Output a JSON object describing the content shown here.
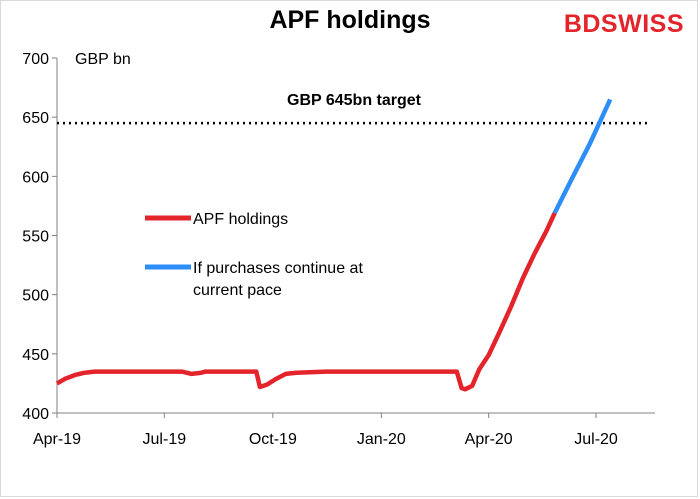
{
  "header": {
    "title": "APF holdings",
    "logo_part1": "BD",
    "logo_part2": "SWISS"
  },
  "chart_data": {
    "type": "line",
    "title": "APF holdings",
    "ylabel": "GBP bn",
    "ylim": [
      400,
      700
    ],
    "yticks": [
      400,
      450,
      500,
      550,
      600,
      650,
      700
    ],
    "xlim": [
      "2019-04-01",
      "2020-08-20"
    ],
    "xticks": [
      {
        "date": "2019-04-01",
        "label": "Apr-19"
      },
      {
        "date": "2019-07-01",
        "label": "Jul-19"
      },
      {
        "date": "2019-10-01",
        "label": "Oct-19"
      },
      {
        "date": "2020-01-01",
        "label": "Jan-20"
      },
      {
        "date": "2020-04-01",
        "label": "Apr-20"
      },
      {
        "date": "2020-07-01",
        "label": "Jul-20"
      }
    ],
    "target": {
      "value": 645,
      "label": "GBP 645bn target",
      "color": "#000000"
    },
    "series": [
      {
        "name": "APF holdings",
        "color": "#e3242b",
        "points": [
          [
            "2019-04-01",
            425
          ],
          [
            "2019-04-08",
            429
          ],
          [
            "2019-04-16",
            432
          ],
          [
            "2019-04-24",
            434
          ],
          [
            "2019-05-03",
            435
          ],
          [
            "2019-06-01",
            435
          ],
          [
            "2019-07-01",
            435
          ],
          [
            "2019-07-16",
            435
          ],
          [
            "2019-07-24",
            433
          ],
          [
            "2019-08-01",
            434
          ],
          [
            "2019-08-05",
            435
          ],
          [
            "2019-09-10",
            435
          ],
          [
            "2019-09-17",
            435
          ],
          [
            "2019-09-20",
            422
          ],
          [
            "2019-09-26",
            424
          ],
          [
            "2019-10-04",
            429
          ],
          [
            "2019-10-12",
            433
          ],
          [
            "2019-10-21",
            434
          ],
          [
            "2019-11-15",
            435
          ],
          [
            "2020-01-01",
            435
          ],
          [
            "2020-02-01",
            435
          ],
          [
            "2020-03-05",
            435
          ],
          [
            "2020-03-09",
            421
          ],
          [
            "2020-03-12",
            420
          ],
          [
            "2020-03-18",
            423
          ],
          [
            "2020-03-24",
            437
          ],
          [
            "2020-04-01",
            449
          ],
          [
            "2020-04-10",
            468
          ],
          [
            "2020-04-20",
            490
          ],
          [
            "2020-04-30",
            514
          ],
          [
            "2020-05-10",
            535
          ],
          [
            "2020-05-20",
            554
          ],
          [
            "2020-05-27",
            569
          ]
        ]
      },
      {
        "name": "If purchases continue at current pace",
        "color": "#2e8ef7",
        "points": [
          [
            "2020-05-27",
            569
          ],
          [
            "2020-06-10",
            597
          ],
          [
            "2020-06-26",
            628
          ],
          [
            "2020-07-13",
            665
          ]
        ]
      }
    ],
    "legend": {
      "placement": "center-left",
      "entries": [
        {
          "label": "APF holdings",
          "color": "#e3242b"
        },
        {
          "label_lines": [
            "If purchases continue at",
            "current pace"
          ],
          "color": "#2e8ef7"
        }
      ]
    },
    "grid": false
  }
}
